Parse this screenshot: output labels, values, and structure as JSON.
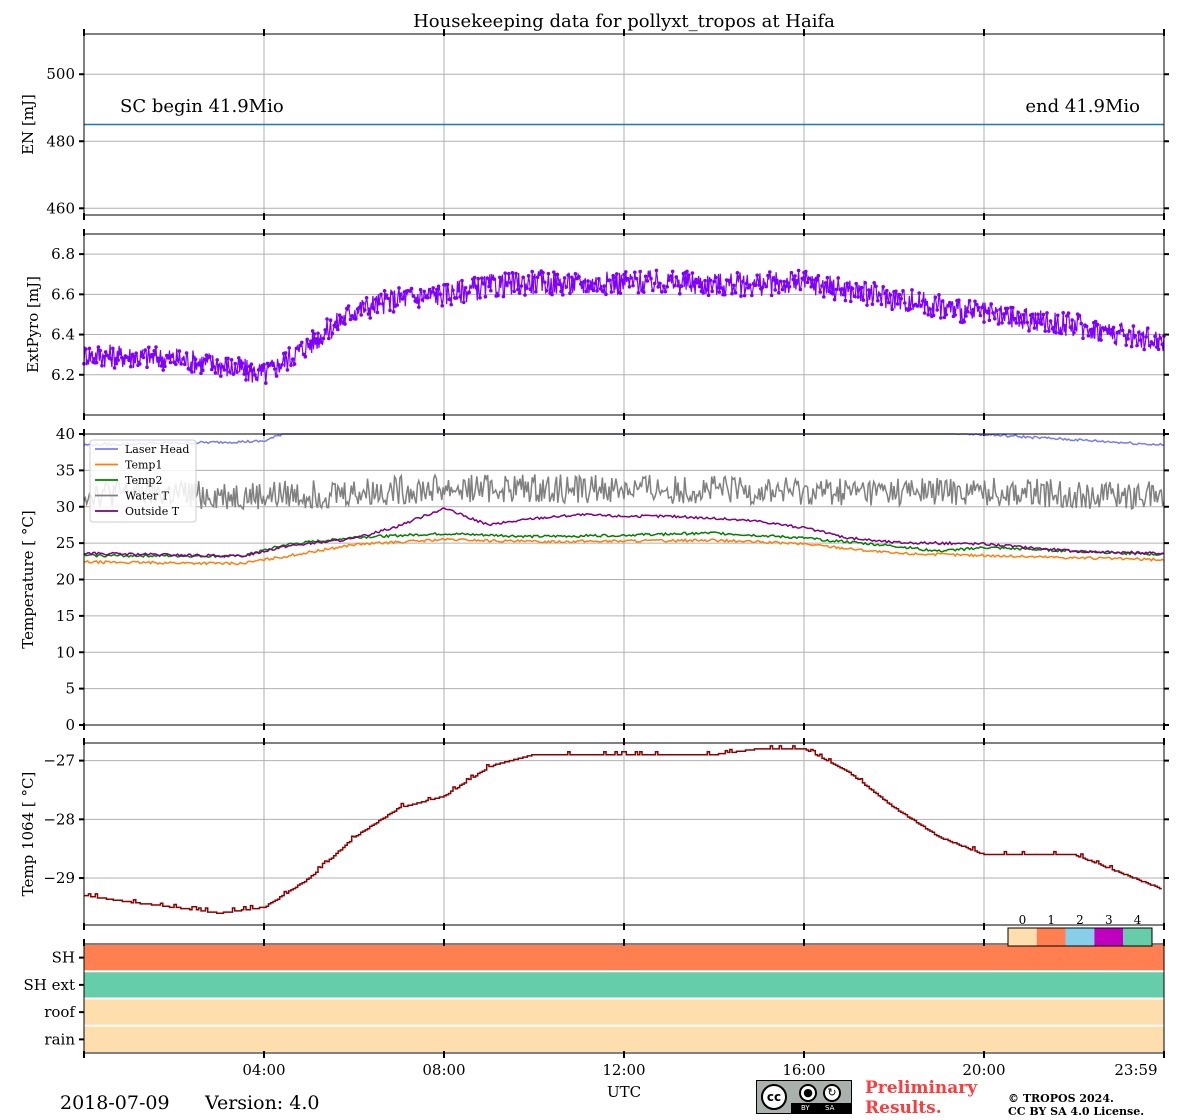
{
  "chart_data": [
    {
      "panel": "energy",
      "type": "line",
      "title": "Housekeeping data for pollyxt_tropos at Haifa",
      "ylabel": "EN [mJ]",
      "ylim": [
        458,
        512
      ],
      "yticks": [
        460,
        480,
        500
      ],
      "x_range_hours": [
        0,
        24
      ],
      "series": [
        {
          "name": "EN",
          "color": "#1f77b4",
          "x": [
            0,
            24
          ],
          "values": [
            485,
            485
          ]
        }
      ],
      "annotations": {
        "left": "SC begin 41.9Mio",
        "right": "end 41.9Mio"
      }
    },
    {
      "panel": "extpyro",
      "type": "line",
      "ylabel": "ExtPyro [mJ]",
      "ylim": [
        6.0,
        6.9
      ],
      "yticks": [
        6.2,
        6.4,
        6.6,
        6.8
      ],
      "series": [
        {
          "name": "ExtPyro",
          "color": "#7f00ff",
          "x": [
            0,
            1,
            2,
            3,
            4,
            5,
            6,
            7,
            8,
            9,
            10,
            11,
            12,
            13,
            14,
            15,
            16,
            17,
            18,
            19,
            20,
            21,
            22,
            23,
            24
          ],
          "values": [
            6.3,
            6.29,
            6.28,
            6.25,
            6.2,
            6.35,
            6.52,
            6.58,
            6.6,
            6.64,
            6.66,
            6.65,
            6.66,
            6.66,
            6.65,
            6.65,
            6.66,
            6.62,
            6.58,
            6.54,
            6.5,
            6.47,
            6.45,
            6.4,
            6.37
          ],
          "noise": 0.06
        }
      ]
    },
    {
      "panel": "temperature",
      "type": "line",
      "ylabel": "Temperature [$^\\circ C$]",
      "ylim": [
        0,
        40
      ],
      "yticks": [
        0,
        5,
        10,
        15,
        20,
        25,
        30,
        35,
        40
      ],
      "legend": [
        "Laser Head",
        "Temp1",
        "Temp2",
        "Water T",
        "Outside T"
      ],
      "series": [
        {
          "name": "Laser Head",
          "color": "#7b7bf0",
          "x": [
            0,
            4,
            4.8,
            17,
            24
          ],
          "values": [
            38.5,
            39.0,
            41.0,
            41.0,
            38.5
          ]
        },
        {
          "name": "Temp1",
          "color": "#ff7f0e",
          "x": [
            0,
            3.5,
            4.5,
            6,
            8,
            10,
            12,
            14,
            16,
            18,
            20,
            22,
            24
          ],
          "values": [
            22.4,
            22.2,
            23.2,
            24.8,
            25.5,
            25.2,
            25.3,
            25.4,
            24.9,
            23.6,
            23.3,
            23.0,
            22.7
          ]
        },
        {
          "name": "Temp2",
          "color": "#008000",
          "x": [
            0,
            3.5,
            4.5,
            6,
            8,
            10,
            12,
            14,
            16,
            18,
            19,
            20,
            22,
            24
          ],
          "values": [
            23.3,
            23.2,
            24.8,
            25.8,
            26.3,
            25.9,
            26.1,
            26.4,
            25.7,
            24.6,
            23.9,
            24.4,
            23.9,
            23.4
          ]
        },
        {
          "name": "Water T",
          "color": "#808080",
          "x": [
            0,
            4,
            8,
            12,
            16,
            20,
            24
          ],
          "values": [
            32.0,
            31.5,
            32.5,
            32.5,
            32.0,
            32.0,
            31.5
          ],
          "noise": 2.0
        },
        {
          "name": "Outside T",
          "color": "#800080",
          "x": [
            0,
            3.5,
            4.5,
            6,
            7,
            8,
            8.5,
            9,
            10,
            11,
            12,
            13,
            14,
            15,
            16,
            17,
            18,
            20,
            22,
            24
          ],
          "values": [
            23.6,
            23.2,
            24.6,
            25.6,
            27.4,
            29.8,
            28.6,
            27.5,
            28.4,
            28.9,
            28.7,
            28.7,
            28.4,
            28.0,
            27.1,
            25.7,
            25.1,
            24.9,
            23.9,
            23.6
          ]
        }
      ]
    },
    {
      "panel": "temp1064",
      "type": "step",
      "ylabel": "Temp 1064 [$^\\circ C$]",
      "ylim": [
        -29.8,
        -26.7
      ],
      "yticks": [
        -29,
        -28,
        -27
      ],
      "series": [
        {
          "name": "Temp 1064",
          "color": "#8b0000",
          "x": [
            0,
            0.9,
            2.0,
            3.0,
            4.0,
            5.0,
            6.0,
            7.0,
            8.0,
            9.0,
            10.0,
            12.0,
            14.0,
            15.0,
            16.0,
            17.0,
            18.0,
            19.0,
            20.0,
            22.0,
            23.0,
            24.0
          ],
          "values": [
            -29.3,
            -29.4,
            -29.5,
            -29.6,
            -29.5,
            -29.0,
            -28.3,
            -27.8,
            -27.6,
            -27.1,
            -26.9,
            -26.9,
            -26.9,
            -26.8,
            -26.8,
            -27.2,
            -27.8,
            -28.3,
            -28.6,
            -28.6,
            -28.9,
            -29.2
          ]
        }
      ]
    },
    {
      "panel": "flags",
      "type": "heatmap",
      "rows": [
        "SH",
        "SH ext",
        "roof",
        "rain"
      ],
      "values": [
        1,
        4,
        0,
        0
      ],
      "colorbar_labels": [
        "0",
        "1",
        "2",
        "3",
        "4"
      ],
      "colors": [
        "#ffdead",
        "#ff7f50",
        "#87ceeb",
        "#c000c0",
        "#66cdaa"
      ],
      "xlabel": "UTC",
      "xtick_labels": [
        "04:00",
        "08:00",
        "12:00",
        "16:00",
        "20:00",
        "23:59"
      ],
      "xticks_hours": [
        4,
        8,
        12,
        16,
        20,
        24
      ]
    }
  ],
  "footer": {
    "date": "2018-07-09",
    "version": "Version: 4.0",
    "preliminary_line1": "Preliminary",
    "preliminary_line2": "Results.",
    "copyright_line1": "© TROPOS 2024.",
    "copyright_line2": "CC BY SA 4.0 License.",
    "badge_by": "BY",
    "badge_sa": "SA"
  }
}
